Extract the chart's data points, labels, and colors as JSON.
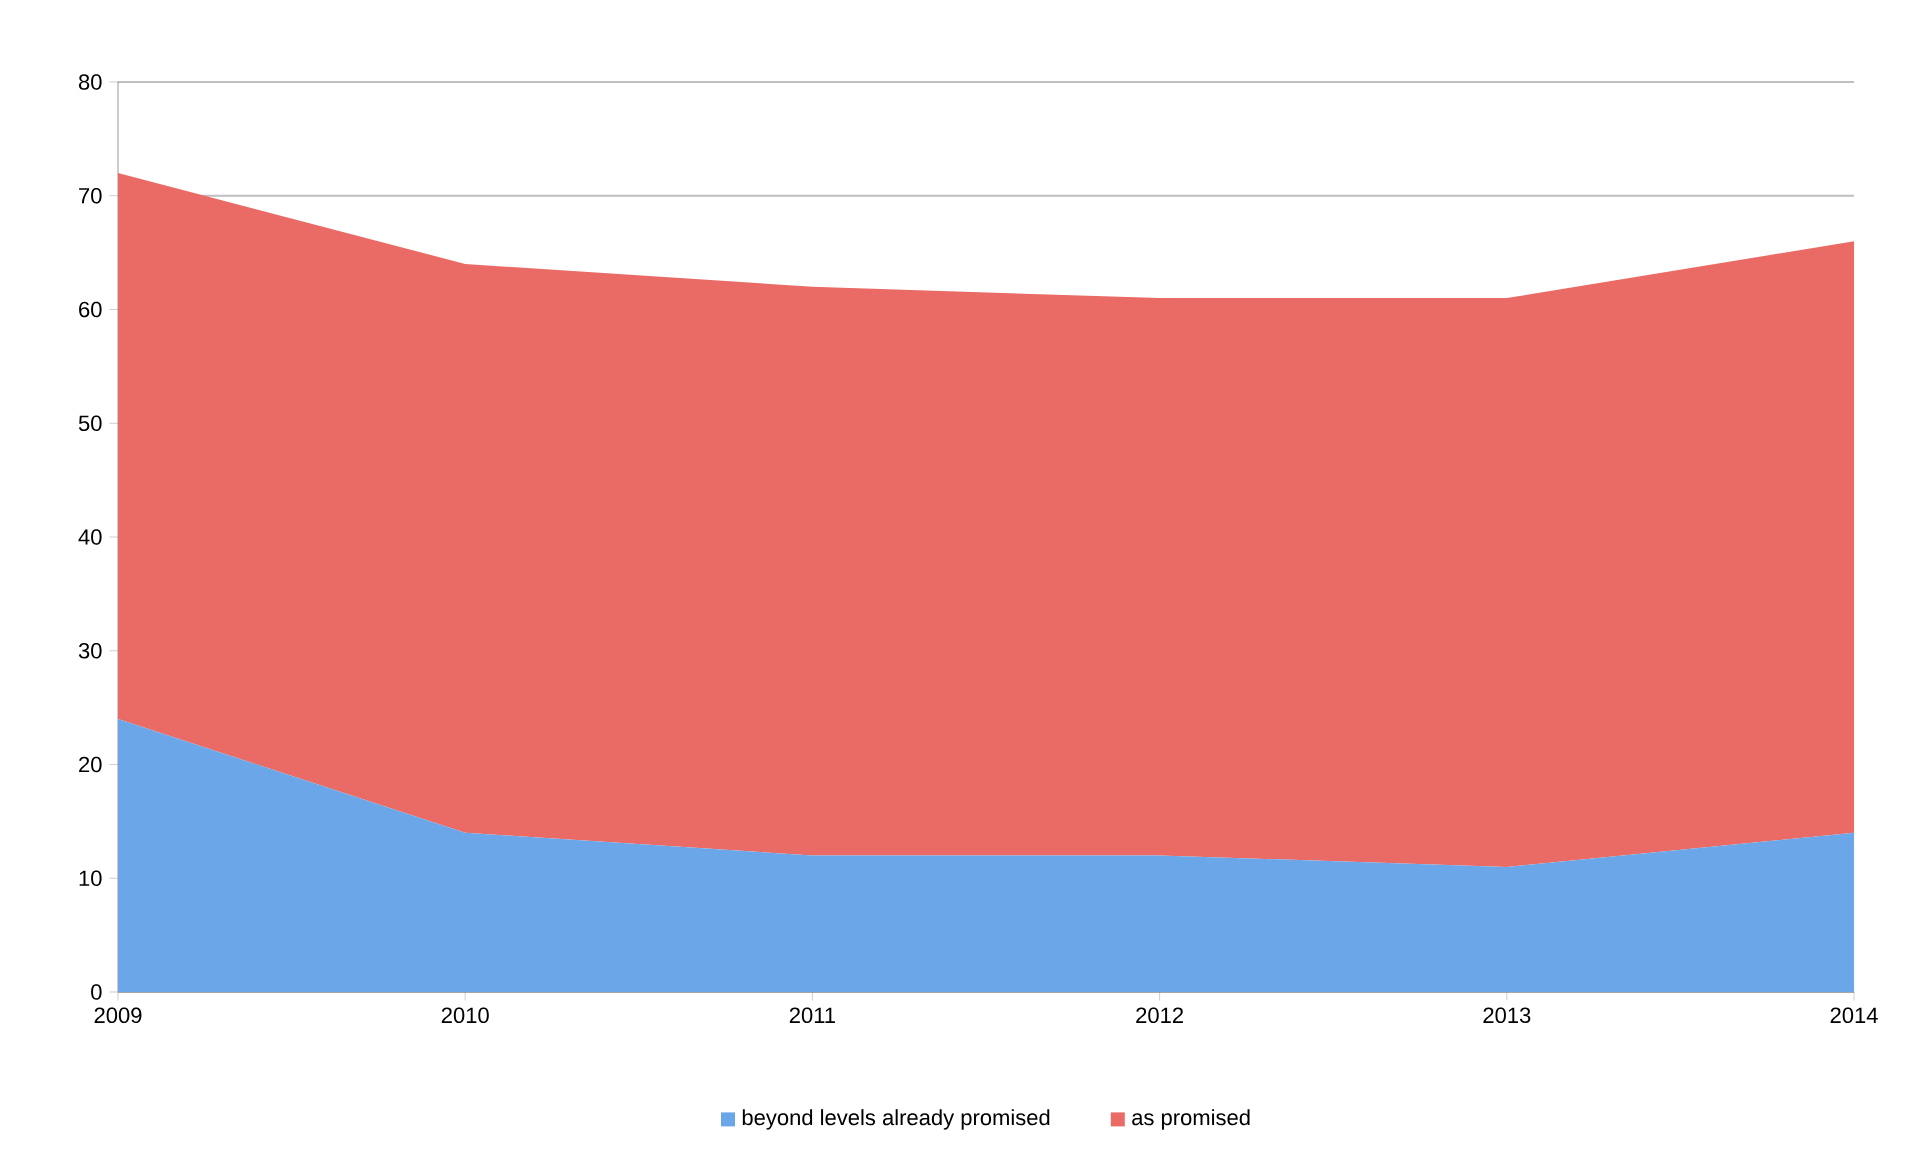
{
  "chart_data": {
    "type": "area",
    "stacked": true,
    "categories": [
      "2009",
      "2010",
      "2011",
      "2012",
      "2013",
      "2014"
    ],
    "series": [
      {
        "name": "beyond levels already promised",
        "color": "#6aa6e8",
        "values": [
          24,
          14,
          12,
          12,
          11,
          14
        ]
      },
      {
        "name": "as promised",
        "color": "#ea6b66",
        "values": [
          48,
          50,
          50,
          49,
          50,
          52
        ]
      }
    ],
    "ylim": [
      0,
      80
    ],
    "yticks": [
      0,
      10,
      20,
      30,
      40,
      50,
      60,
      70,
      80
    ],
    "grid": "y",
    "legend": "bottom"
  }
}
